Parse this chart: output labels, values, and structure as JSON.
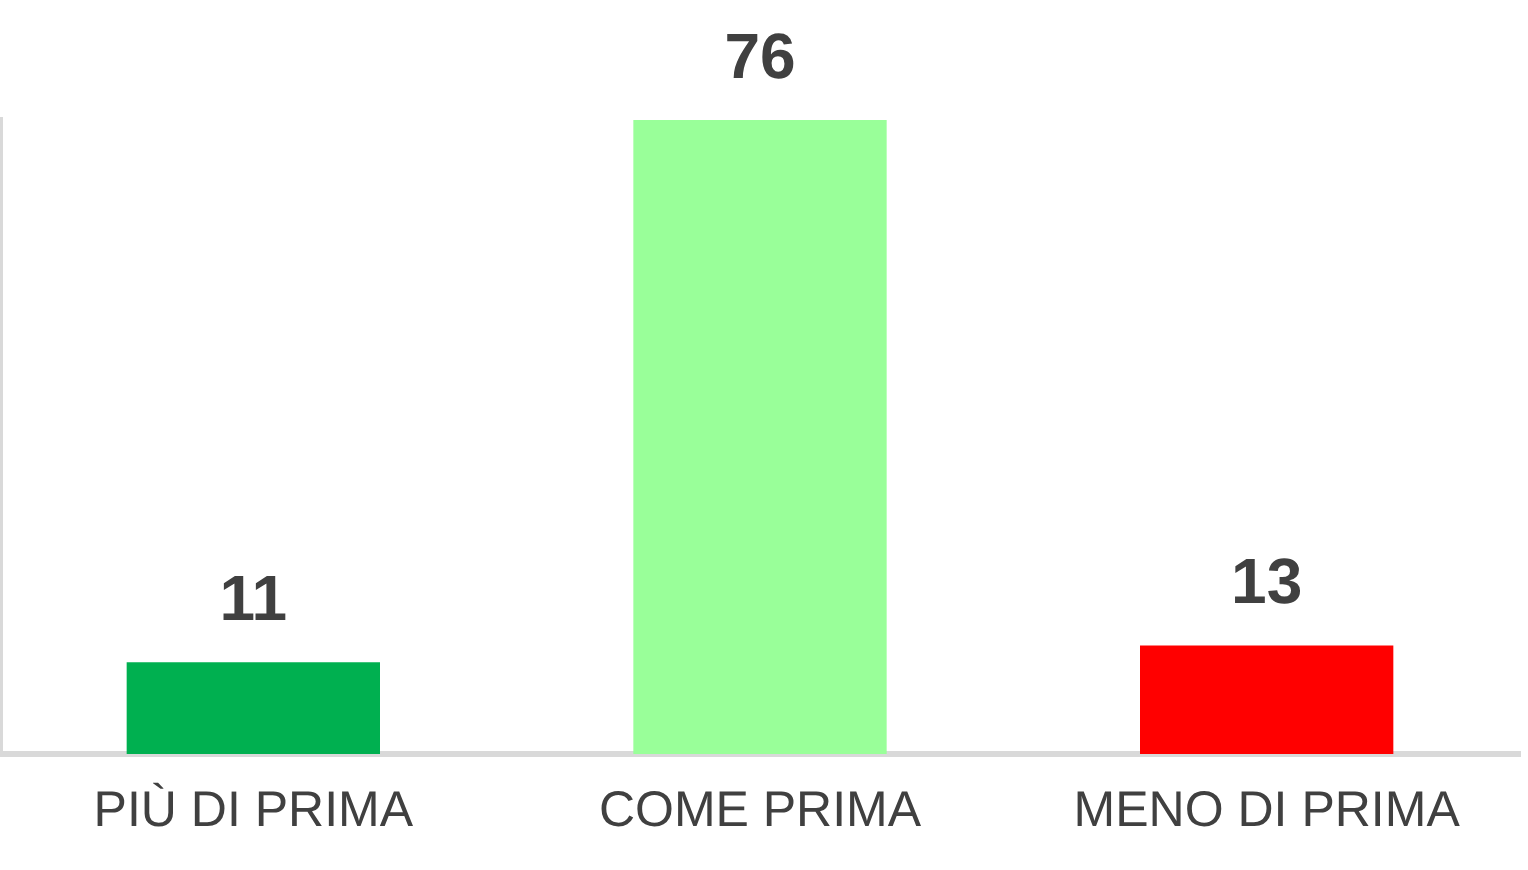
{
  "chart_data": {
    "type": "bar",
    "categories": [
      "PIÙ DI PRIMA",
      "COME PRIMA",
      "MENO DI PRIMA"
    ],
    "values": [
      11,
      76,
      13
    ],
    "colors": [
      "#00b050",
      "#99ff99",
      "#ff0000"
    ],
    "ylim": [
      0,
      76
    ],
    "data_labels": true,
    "grid": false,
    "legend": false
  }
}
